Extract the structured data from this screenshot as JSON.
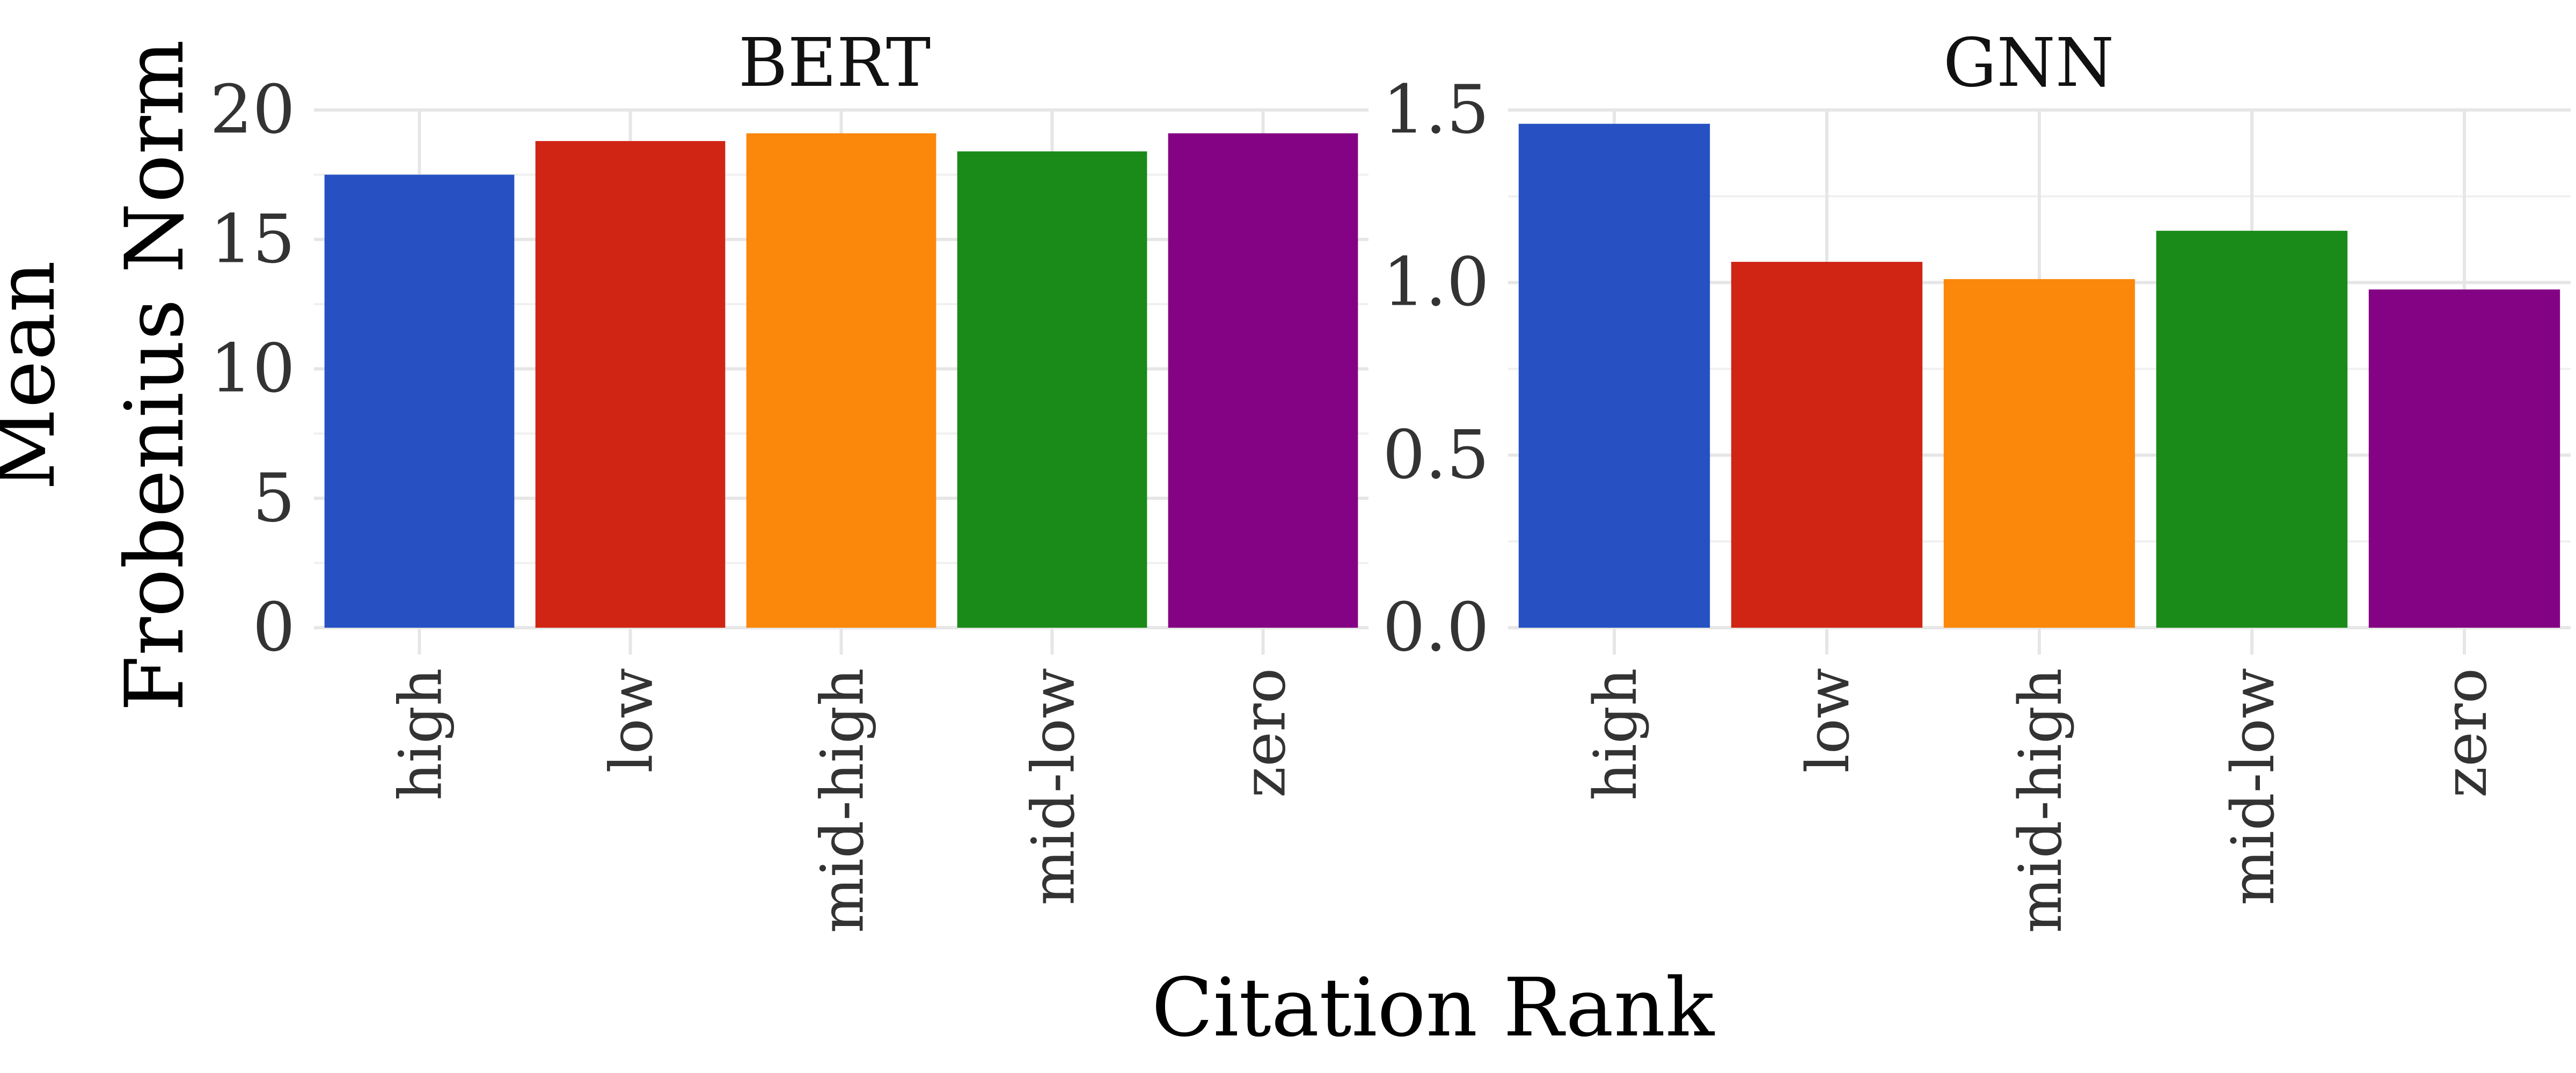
{
  "chart_data": {
    "type": "bar",
    "xlabel": "Citation Rank",
    "ylabel_lines": [
      "Mean",
      "Frobenius Norm"
    ],
    "categories": [
      "high",
      "low",
      "mid-high",
      "mid-low",
      "zero"
    ],
    "colors": [
      "#2751c2",
      "#d02415",
      "#fb870b",
      "#1a8a18",
      "#840384"
    ],
    "grid": true,
    "legend": "none",
    "panels": [
      {
        "title": "BERT",
        "values": [
          17.5,
          18.8,
          19.1,
          18.4,
          19.1
        ],
        "ylim": [
          0,
          20
        ],
        "yticks": [
          "0",
          "5",
          "10",
          "15",
          "20"
        ]
      },
      {
        "title": "GNN",
        "values": [
          1.46,
          1.06,
          1.01,
          1.15,
          0.98
        ],
        "ylim": [
          0,
          1.5
        ],
        "yticks": [
          "0.0",
          "0.5",
          "1.0",
          "1.5"
        ]
      }
    ]
  }
}
